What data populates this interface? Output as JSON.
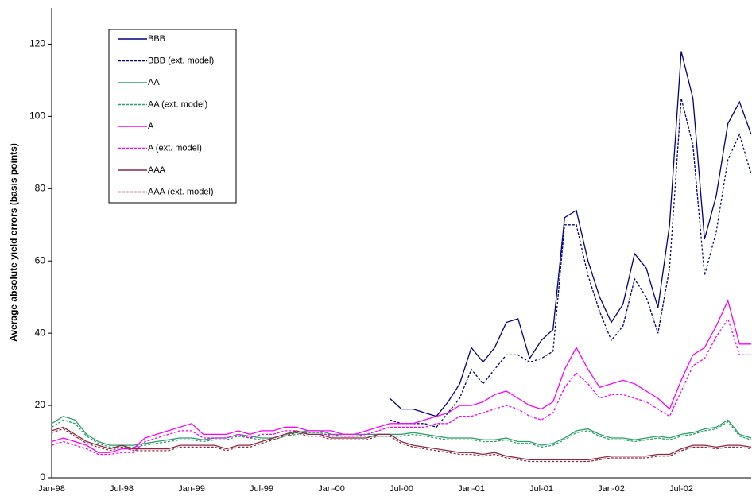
{
  "chart_data": {
    "type": "line",
    "y_label": "Average absolute yield errors (basis points)",
    "categories": [
      "Jan-98",
      null,
      null,
      null,
      null,
      null,
      "Jul-98",
      null,
      null,
      null,
      null,
      null,
      "Jan-99",
      null,
      null,
      null,
      null,
      null,
      "Jul-99",
      null,
      null,
      null,
      null,
      null,
      "Jan-00",
      null,
      null,
      null,
      null,
      null,
      "Jul-00",
      null,
      null,
      null,
      null,
      null,
      "Jan-01",
      null,
      null,
      null,
      null,
      null,
      "Jul-01",
      null,
      null,
      null,
      null,
      null,
      "Jan-02",
      null,
      null,
      null,
      null,
      null,
      "Jul-02",
      null,
      null,
      null,
      null,
      null,
      null
    ],
    "ylim": [
      0,
      130
    ],
    "yticks": [
      0,
      20,
      40,
      60,
      80,
      100,
      120
    ],
    "grid": false,
    "legend": "top-left",
    "series": [
      {
        "name": "BBB",
        "color": "#000080",
        "dashed": false,
        "values": [
          null,
          null,
          null,
          null,
          null,
          null,
          null,
          null,
          null,
          null,
          null,
          null,
          null,
          null,
          null,
          null,
          null,
          null,
          null,
          null,
          null,
          null,
          null,
          null,
          null,
          null,
          null,
          null,
          null,
          22,
          19,
          19,
          18,
          17,
          21,
          26,
          36,
          32,
          36,
          43,
          44,
          33,
          38,
          41,
          72,
          74,
          60,
          50,
          43,
          48,
          62,
          58,
          47,
          70,
          118,
          105,
          66,
          78,
          98,
          104,
          95
        ]
      },
      {
        "name": "BBB (ext. model)",
        "color": "#000080",
        "dashed": true,
        "values": [
          null,
          null,
          null,
          null,
          null,
          null,
          null,
          null,
          null,
          null,
          null,
          null,
          null,
          null,
          null,
          null,
          null,
          null,
          null,
          null,
          null,
          null,
          null,
          null,
          null,
          null,
          null,
          null,
          null,
          16,
          15,
          15,
          15,
          14,
          18,
          22,
          30,
          26,
          30,
          34,
          34,
          32,
          33,
          35,
          70,
          70,
          56,
          46,
          38,
          42,
          55,
          50,
          40,
          58,
          105,
          92,
          56,
          68,
          88,
          95,
          84
        ]
      },
      {
        "name": "AA",
        "color": "#2e9e6b",
        "dashed": false,
        "values": [
          15,
          17,
          16,
          12,
          10,
          9,
          9,
          9,
          9.5,
          10,
          10.5,
          11,
          11,
          10.5,
          11,
          11,
          12,
          11.5,
          11,
          11,
          12,
          12.5,
          13,
          13,
          12,
          12,
          12,
          12,
          12,
          12,
          12,
          12.5,
          12,
          11.5,
          11,
          11,
          11,
          10.5,
          10.5,
          11,
          10,
          10,
          9,
          9.5,
          11,
          13,
          13.5,
          12,
          11,
          11,
          10.5,
          11,
          11.5,
          11,
          12,
          12.5,
          13.5,
          14,
          16,
          12,
          11
        ]
      },
      {
        "name": "AA (ext. model)",
        "color": "#2e9e6b",
        "dashed": true,
        "values": [
          14,
          16,
          15,
          11.5,
          9.5,
          8.5,
          8.5,
          8.5,
          9,
          9.5,
          10,
          10.5,
          10.5,
          10,
          10.5,
          10.5,
          11.5,
          11,
          10.5,
          10.5,
          11.5,
          12,
          12.5,
          12.5,
          11.5,
          11.5,
          11.5,
          11.5,
          11.5,
          11.5,
          11.5,
          12,
          11.5,
          11,
          10.5,
          10.5,
          10.5,
          10,
          10,
          10.5,
          9.5,
          9.5,
          8.5,
          9,
          10.5,
          12.5,
          13,
          11.5,
          10.5,
          10.5,
          10,
          10.5,
          11,
          10.5,
          11.5,
          12,
          13,
          13.5,
          15.5,
          11.5,
          10.5
        ]
      },
      {
        "name": "A",
        "color": "#ff00ff",
        "dashed": false,
        "values": [
          10,
          11,
          10,
          9,
          7,
          7,
          8,
          8,
          11,
          12,
          13,
          14,
          15,
          12,
          12,
          12,
          13,
          12,
          13,
          13,
          14,
          14,
          13,
          13,
          13,
          12,
          12,
          13,
          14,
          15,
          15,
          15,
          16,
          17,
          18,
          20,
          20,
          21,
          23,
          24,
          22,
          20,
          19,
          21,
          30,
          36,
          30,
          25,
          26,
          27,
          26,
          24,
          22,
          19,
          27,
          34,
          36,
          42,
          49,
          37,
          37
        ]
      },
      {
        "name": "A (ext. model)",
        "color": "#ff00ff",
        "dashed": true,
        "values": [
          9,
          10,
          9,
          8,
          6.5,
          6.5,
          7,
          7,
          10,
          11,
          12,
          13,
          13,
          11,
          11,
          11,
          12,
          11,
          12,
          12,
          13,
          13,
          12,
          12,
          12,
          11.5,
          11.5,
          12,
          13,
          14,
          14,
          14,
          14,
          15,
          15,
          17,
          17,
          18,
          19,
          20,
          19,
          17,
          16,
          18,
          25,
          29,
          26,
          22,
          23,
          23,
          22,
          21,
          19,
          17,
          24,
          31,
          33,
          39,
          44,
          34,
          34
        ]
      },
      {
        "name": "AAA",
        "color": "#8b2942",
        "dashed": false,
        "values": [
          13,
          14,
          12,
          10,
          9,
          8,
          9,
          8,
          8,
          8,
          8,
          9,
          9,
          9,
          9,
          8,
          9,
          9,
          10,
          11,
          12,
          13,
          12,
          12,
          11,
          11,
          11,
          11,
          12,
          12,
          10,
          9,
          8.5,
          8,
          7.5,
          7,
          7,
          6.5,
          7,
          6,
          5.5,
          5,
          5,
          5,
          5,
          5,
          5,
          5.5,
          6,
          6,
          6,
          6,
          6.5,
          6.5,
          8,
          9,
          9,
          8.5,
          9,
          9,
          8.5
        ]
      },
      {
        "name": "AAA (ext. model)",
        "color": "#8b2942",
        "dashed": true,
        "values": [
          12.5,
          13.5,
          11.5,
          9.5,
          8.5,
          7.5,
          8.5,
          7.5,
          7.5,
          7.5,
          7.5,
          8.5,
          8.5,
          8.5,
          8.5,
          7.5,
          8.5,
          8.5,
          9.5,
          10.5,
          11.5,
          12.5,
          11.5,
          11.5,
          10.5,
          10.5,
          10.5,
          10.5,
          11.5,
          11.5,
          9.5,
          8.5,
          8,
          7.5,
          7,
          6.5,
          6.5,
          6,
          6.5,
          5.5,
          5,
          4.5,
          4.5,
          4.5,
          4.5,
          4.5,
          4.5,
          5,
          5.5,
          5.5,
          5.5,
          5.5,
          6,
          6,
          7.5,
          8.5,
          8.5,
          8,
          8.5,
          8.5,
          8
        ]
      }
    ]
  }
}
